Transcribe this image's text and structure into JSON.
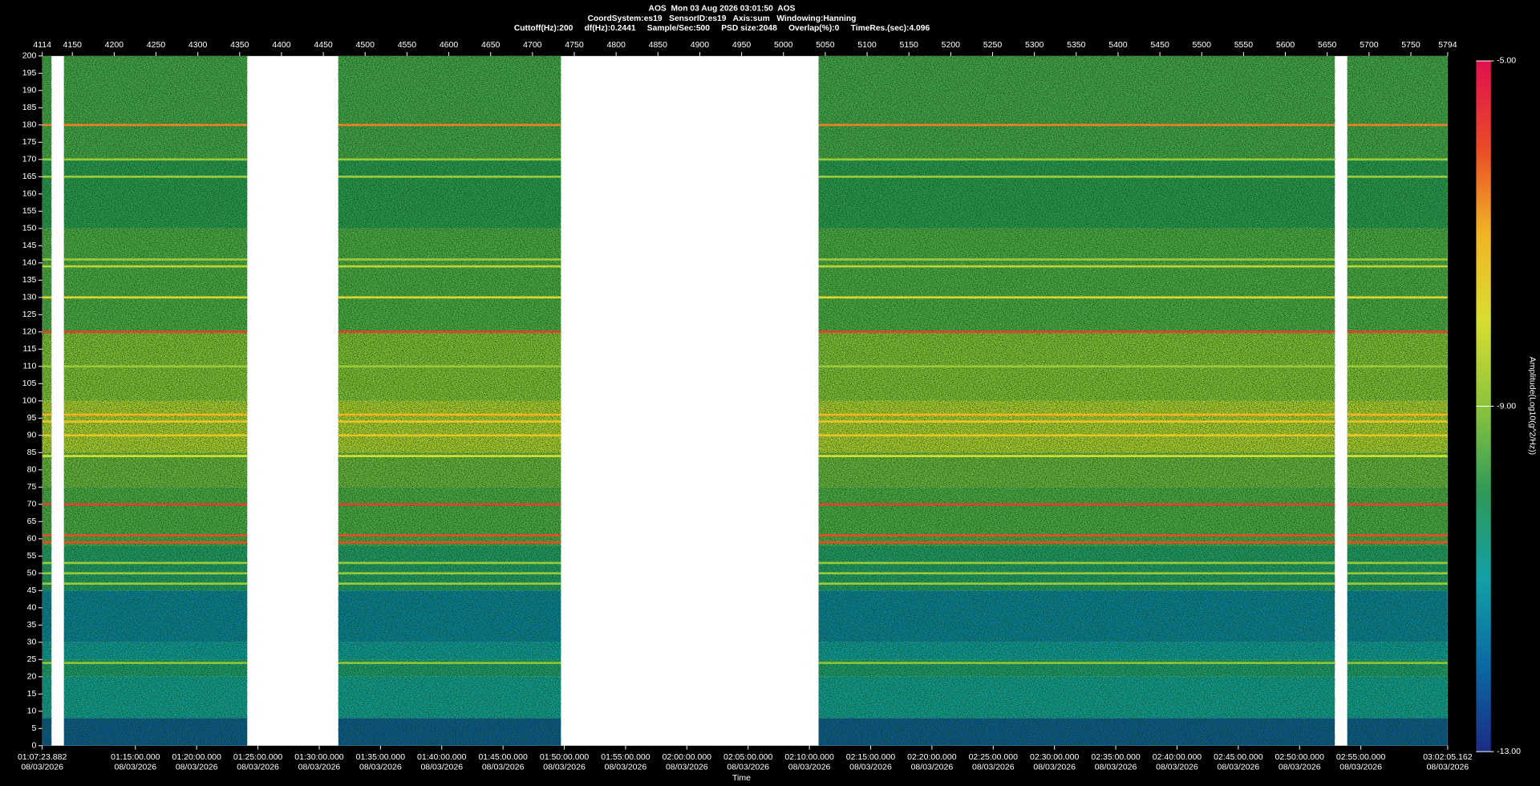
{
  "chart_data": {
    "type": "spectrogram",
    "title": "AOS  Mon 03 Aug 2026 03:01:50  AOS",
    "subtitle": [
      "CoordSystem:es19   SensorID:es19   Axis:sum   Windowing:Hanning",
      "Cuttoff(Hz):200     df(Hz):0.2441     Sample/Sec:500     PSD size:2048     Overlap(%):0     TimeRes.(sec):4.096"
    ],
    "xlabel": "Time",
    "colorbar_label": "Amplitude(Log10(g^2/Hz))",
    "xlim": [
      4114,
      5794
    ],
    "xticks": [
      4114,
      4150,
      4200,
      4250,
      4300,
      4350,
      4400,
      4450,
      4500,
      4550,
      4600,
      4650,
      4700,
      4750,
      4800,
      4850,
      4900,
      4950,
      5000,
      5050,
      5100,
      5150,
      5200,
      5250,
      5300,
      5350,
      5400,
      5450,
      5500,
      5550,
      5600,
      5650,
      5700,
      5750,
      5794
    ],
    "time_lim": [
      "01:07:23.882",
      "03:02:05.162"
    ],
    "time_ticks": [
      {
        "time": "01:07:23.882",
        "date": "08/03/2026"
      },
      {
        "time": "01:15:00.000",
        "date": "08/03/2026"
      },
      {
        "time": "01:20:00.000",
        "date": "08/03/2026"
      },
      {
        "time": "01:25:00.000",
        "date": "08/03/2026"
      },
      {
        "time": "01:30:00.000",
        "date": "08/03/2026"
      },
      {
        "time": "01:35:00.000",
        "date": "08/03/2026"
      },
      {
        "time": "01:40:00.000",
        "date": "08/03/2026"
      },
      {
        "time": "01:45:00.000",
        "date": "08/03/2026"
      },
      {
        "time": "01:50:00.000",
        "date": "08/03/2026"
      },
      {
        "time": "01:55:00.000",
        "date": "08/03/2026"
      },
      {
        "time": "02:00:00.000",
        "date": "08/03/2026"
      },
      {
        "time": "02:05:00.000",
        "date": "08/03/2026"
      },
      {
        "time": "02:10:00.000",
        "date": "08/03/2026"
      },
      {
        "time": "02:15:00.000",
        "date": "08/03/2026"
      },
      {
        "time": "02:20:00.000",
        "date": "08/03/2026"
      },
      {
        "time": "02:25:00.000",
        "date": "08/03/2026"
      },
      {
        "time": "02:30:00.000",
        "date": "08/03/2026"
      },
      {
        "time": "02:35:00.000",
        "date": "08/03/2026"
      },
      {
        "time": "02:40:00.000",
        "date": "08/03/2026"
      },
      {
        "time": "02:45:00.000",
        "date": "08/03/2026"
      },
      {
        "time": "02:50:00.000",
        "date": "08/03/2026"
      },
      {
        "time": "02:55:00.000",
        "date": "08/03/2026"
      },
      {
        "time": "03:02:05.162",
        "date": "08/03/2026"
      }
    ],
    "ylim": [
      0,
      200
    ],
    "yticks": [
      0,
      5,
      10,
      15,
      20,
      25,
      30,
      35,
      40,
      45,
      50,
      55,
      60,
      65,
      70,
      75,
      80,
      85,
      90,
      95,
      100,
      105,
      110,
      115,
      120,
      125,
      130,
      135,
      140,
      145,
      150,
      155,
      160,
      165,
      170,
      175,
      180,
      185,
      190,
      195,
      200
    ],
    "clim": [
      -13,
      -5
    ],
    "cticks": [
      {
        "value": -5,
        "label": "-5.00"
      },
      {
        "value": -9,
        "label": "-9.00"
      },
      {
        "value": -13,
        "label": "-13.00"
      }
    ],
    "colormap": [
      "#1b2c86",
      "#0b6aa2",
      "#13a0a6",
      "#2f9a58",
      "#8cc43c",
      "#d9dd30",
      "#f0b424",
      "#e94a28",
      "#e0104f"
    ],
    "segments": [
      [
        4114,
        4125
      ],
      [
        4140,
        4359
      ],
      [
        4468,
        4734
      ],
      [
        5042,
        5659
      ],
      [
        5674,
        5794
      ]
    ],
    "bands": [
      {
        "from": 0,
        "to": 8,
        "amplitude": -12.3
      },
      {
        "from": 8,
        "to": 20,
        "amplitude": -10.9
      },
      {
        "from": 20,
        "to": 25,
        "amplitude": -10.4
      },
      {
        "from": 25,
        "to": 30,
        "amplitude": -11.1
      },
      {
        "from": 30,
        "to": 45,
        "amplitude": -11.6
      },
      {
        "from": 45,
        "to": 58,
        "amplitude": -10.3
      },
      {
        "from": 58,
        "to": 75,
        "amplitude": -9.6
      },
      {
        "from": 75,
        "to": 85,
        "amplitude": -9.3
      },
      {
        "from": 85,
        "to": 100,
        "amplitude": -8.4
      },
      {
        "from": 100,
        "to": 120,
        "amplitude": -9.0
      },
      {
        "from": 120,
        "to": 150,
        "amplitude": -9.6
      },
      {
        "from": 150,
        "to": 170,
        "amplitude": -10.0
      },
      {
        "from": 170,
        "to": 200,
        "amplitude": -9.7
      }
    ],
    "tonals": [
      {
        "freq": 180,
        "amplitude": -6.5
      },
      {
        "freq": 170,
        "amplitude": -8.8
      },
      {
        "freq": 165,
        "amplitude": -8.8
      },
      {
        "freq": 141,
        "amplitude": -8.8
      },
      {
        "freq": 139,
        "amplitude": -8.4
      },
      {
        "freq": 130,
        "amplitude": -7.8
      },
      {
        "freq": 120,
        "amplitude": -5.8
      },
      {
        "freq": 110,
        "amplitude": -8.8
      },
      {
        "freq": 96,
        "amplitude": -7.0
      },
      {
        "freq": 94,
        "amplitude": -7.4
      },
      {
        "freq": 90,
        "amplitude": -7.4
      },
      {
        "freq": 84,
        "amplitude": -8.0
      },
      {
        "freq": 70,
        "amplitude": -5.8
      },
      {
        "freq": 61,
        "amplitude": -6.0
      },
      {
        "freq": 59,
        "amplitude": -6.0
      },
      {
        "freq": 53,
        "amplitude": -8.8
      },
      {
        "freq": 50,
        "amplitude": -8.8
      },
      {
        "freq": 47,
        "amplitude": -8.8
      },
      {
        "freq": 24,
        "amplitude": -9.0
      }
    ],
    "grid": false
  }
}
